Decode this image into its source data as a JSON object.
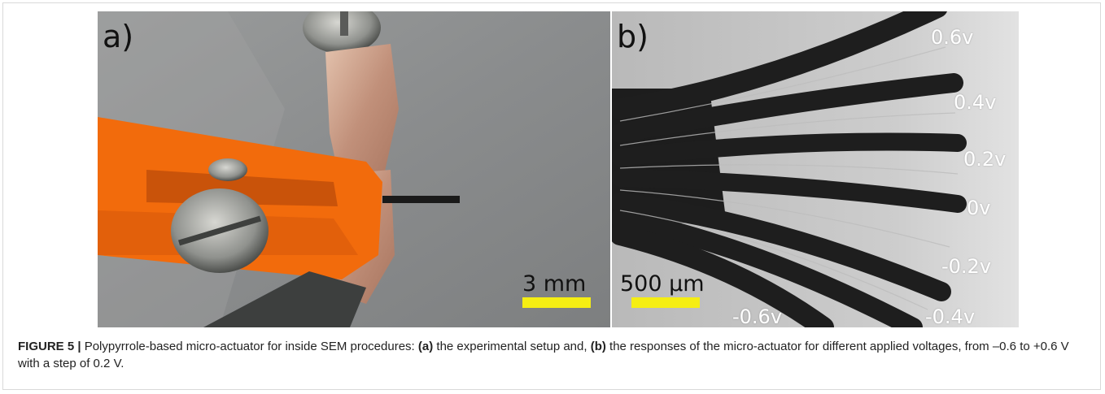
{
  "panel_a": {
    "label": "a)",
    "scale_label": "3 mm"
  },
  "panel_b": {
    "label": "b)",
    "scale_label": "500 µm",
    "voltages": [
      "0.6v",
      "0.4v",
      "0.2v",
      "0v",
      "-0.2v",
      "-0.4v",
      "-0.6v"
    ]
  },
  "caption": {
    "figure_label": "FIGURE 5 |",
    "text_1": " Polypyrrole-based micro-actuator for inside SEM procedures: ",
    "bold_a": "(a)",
    "text_2": " the experimental setup and, ",
    "bold_b": "(b)",
    "text_3": " the responses of the micro-actuator for different applied voltages, from –0.6 to +0.6 V with a step of 0.2 V."
  },
  "colors": {
    "scale_bar": "#f5ee13",
    "clamp_orange": "#f26b0c",
    "copper_tape": "#c8a08a"
  }
}
